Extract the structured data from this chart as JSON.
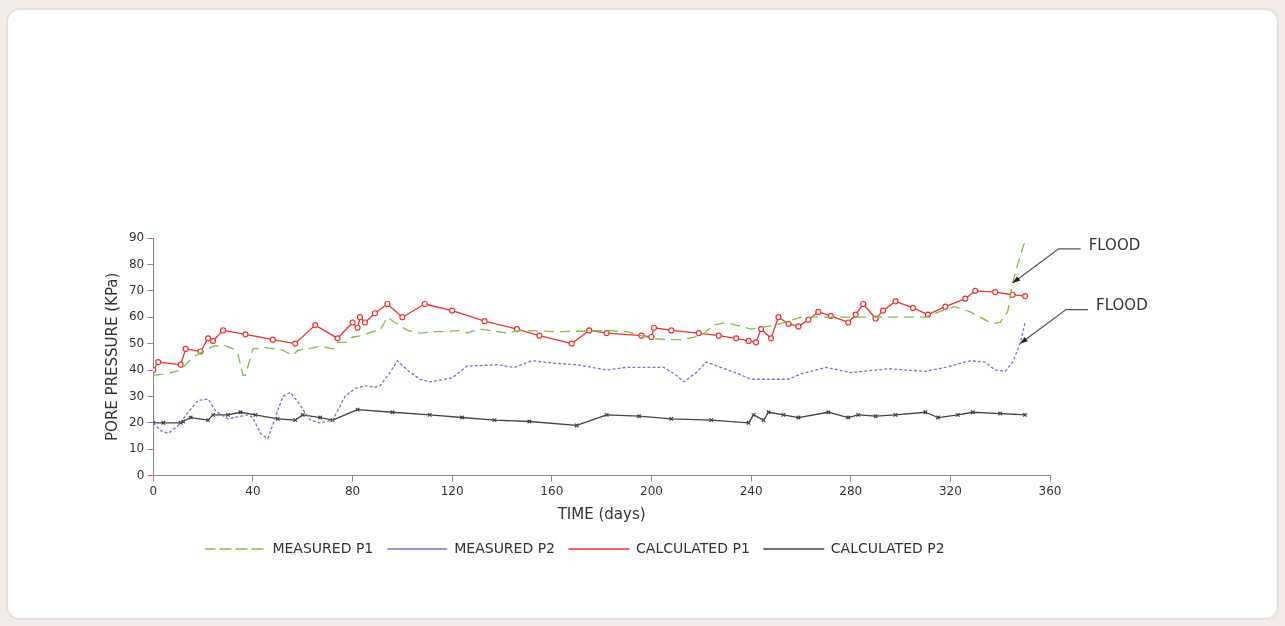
{
  "chart_data": {
    "type": "line",
    "xlabel": "TIME (days)",
    "ylabel": "PORE PRESSURE (KPa)",
    "xlim": [
      0,
      360
    ],
    "xticks": [
      0,
      40,
      80,
      120,
      160,
      200,
      240,
      280,
      320,
      360
    ],
    "ylim": [
      0,
      90
    ],
    "yticks": [
      0,
      10,
      20,
      30,
      40,
      50,
      60,
      70,
      80,
      90
    ],
    "grid": false,
    "legend": "bottom",
    "annotations": [
      {
        "text": "FLOOD",
        "x": 345,
        "y": 73
      },
      {
        "text": "FLOOD",
        "x": 348,
        "y": 50
      }
    ],
    "series": [
      {
        "name": "MEASURED P1",
        "color": "#7cc142",
        "line_style": "dashed",
        "marker": "none",
        "x": [
          0,
          5,
          11,
          15,
          18,
          24,
          28,
          32,
          34,
          36,
          37,
          40,
          45,
          52,
          56,
          58,
          62,
          67,
          72,
          74,
          78,
          80,
          84,
          88,
          91,
          94,
          97,
          102,
          107,
          113,
          118,
          123,
          126,
          131,
          142,
          148,
          163,
          182,
          190,
          200,
          206,
          212,
          220,
          225,
          230,
          240,
          250,
          260,
          280,
          300,
          310,
          318,
          322,
          328,
          334,
          337,
          340,
          343,
          345,
          347,
          350
        ],
        "values": [
          38,
          38.5,
          40,
          44,
          46,
          49,
          49.5,
          48,
          46,
          38,
          38,
          48,
          48.5,
          47.5,
          45.5,
          47.5,
          48,
          49,
          48,
          50.5,
          50.5,
          52.5,
          53,
          54.5,
          55,
          60,
          58,
          55,
          54,
          54.5,
          54.5,
          55,
          54,
          55.5,
          54,
          55,
          54.5,
          55,
          54.5,
          52,
          51.5,
          51.5,
          53,
          57,
          58,
          55.5,
          57,
          60,
          60,
          60,
          60,
          63,
          64,
          62,
          59,
          57.5,
          58,
          62,
          73,
          80,
          89
        ]
      },
      {
        "name": "MEASURED P2",
        "color": "#7777cc",
        "line_style": "dotted",
        "marker": "none",
        "x": [
          0,
          3,
          6,
          10,
          14,
          18,
          22,
          25,
          30,
          38,
          40,
          43,
          46,
          49,
          52,
          55,
          58,
          63,
          67,
          72,
          77,
          81,
          85,
          89,
          91,
          95,
          98,
          102,
          107,
          111,
          120,
          126,
          138,
          145,
          152,
          162,
          170,
          182,
          190,
          205,
          210,
          213,
          218,
          222,
          235,
          240,
          255,
          260,
          270,
          280,
          295,
          310,
          318,
          328,
          334,
          338,
          342,
          345,
          348,
          350
        ],
        "values": [
          20,
          17,
          16,
          19,
          24,
          28.5,
          29,
          24.5,
          21.5,
          23,
          22,
          16,
          14,
          22,
          30,
          31.5,
          28,
          21,
          20,
          21,
          30,
          33,
          34,
          33.5,
          34,
          39,
          43.5,
          40,
          36.5,
          35.5,
          37,
          41.5,
          42,
          41,
          43.5,
          42.5,
          42,
          40,
          41,
          41,
          38,
          35.5,
          39,
          43,
          38.5,
          36.5,
          36.5,
          38.5,
          41,
          39,
          40.5,
          39.5,
          41,
          43.5,
          43,
          40,
          39.5,
          43,
          50,
          58
        ]
      },
      {
        "name": "CALCULATED P1",
        "color": "#ee3333",
        "line_style": "solid",
        "marker": "circle",
        "x": [
          0,
          2,
          11,
          13,
          19,
          22,
          24,
          28,
          37,
          48,
          57,
          65,
          74,
          80,
          82,
          83,
          85,
          89,
          94,
          100,
          109,
          120,
          133,
          146,
          155,
          168,
          175,
          182,
          196,
          200,
          201,
          208,
          219,
          227,
          234,
          239,
          242,
          244,
          248,
          251,
          255,
          259,
          263,
          267,
          272,
          279,
          282,
          285,
          290,
          293,
          298,
          305,
          311,
          318,
          326,
          330,
          338,
          345,
          350
        ],
        "values": [
          40,
          43,
          42,
          48,
          47,
          52,
          51,
          55,
          53.5,
          51.5,
          50,
          57,
          52,
          58,
          56,
          60,
          58,
          61.5,
          65,
          60,
          65,
          62.5,
          58.5,
          55.5,
          53,
          50,
          55,
          54,
          53,
          52.5,
          56,
          55,
          54,
          53,
          52,
          51,
          50.5,
          55.5,
          52,
          60,
          57.5,
          56.5,
          59,
          62,
          60.5,
          58,
          61,
          65,
          59.5,
          62.5,
          66,
          63.5,
          61,
          64,
          67,
          70,
          69.5,
          68.5,
          68
        ]
      },
      {
        "name": "CALCULATED P2",
        "color": "#444444",
        "line_style": "solid",
        "marker": "cross",
        "x": [
          0,
          4,
          11,
          12,
          15,
          22,
          24,
          30,
          35,
          41,
          50,
          57,
          60,
          67,
          72,
          82,
          96,
          111,
          124,
          137,
          151,
          170,
          182,
          195,
          208,
          224,
          239,
          241,
          245,
          247,
          253,
          259,
          271,
          279,
          283,
          290,
          298,
          310,
          315,
          323,
          329,
          340,
          350
        ],
        "values": [
          20,
          20,
          20,
          20.5,
          22,
          21,
          23,
          23,
          24,
          23,
          21.5,
          21,
          23,
          22,
          21,
          25,
          24,
          23,
          22,
          21,
          20.5,
          19,
          23,
          22.5,
          21.5,
          21,
          20,
          23,
          21,
          24,
          23,
          22,
          24,
          22,
          23,
          22.5,
          23,
          24,
          22,
          23,
          24,
          23.5,
          23
        ]
      }
    ]
  }
}
